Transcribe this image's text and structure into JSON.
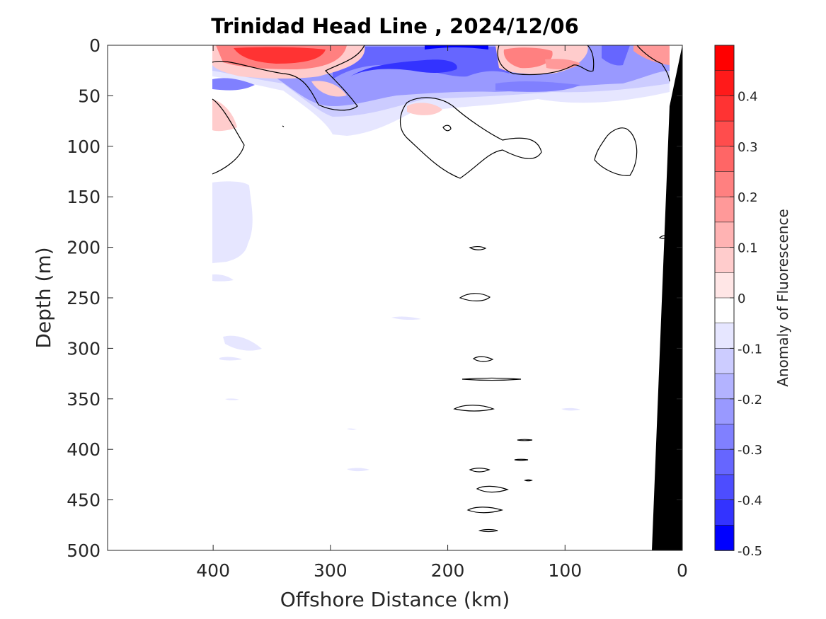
{
  "chart_data": {
    "type": "heatmap",
    "title": "Trinidad Head Line , 2024/12/06",
    "xlabel": "Offshore Distance (km)",
    "ylabel": "Depth (m)",
    "colorbar_label": "Anomaly of Fluorescence",
    "xlim": [
      490,
      0
    ],
    "ylim": [
      0,
      500
    ],
    "x_reversed": true,
    "y_reversed": true,
    "x_ticks": [
      400,
      300,
      200,
      100,
      0
    ],
    "y_ticks": [
      0,
      50,
      100,
      150,
      200,
      250,
      300,
      350,
      400,
      450,
      500
    ],
    "colorbar_range": [
      -0.5,
      0.5
    ],
    "colorbar_tick_values": [
      0.4,
      0.3,
      0.2,
      0.1,
      0,
      -0.1,
      -0.2,
      -0.3,
      -0.4,
      -0.5
    ],
    "colorbar_tick_labels": [
      "0.4",
      "0.3",
      "0.2",
      "0.1",
      "0",
      "-0.1",
      "-0.2",
      "-0.3",
      "-0.4",
      "-0.5"
    ],
    "colorbar_levels": [
      {
        "min": 0.45,
        "max": 0.5,
        "color": "#ff0000"
      },
      {
        "min": 0.4,
        "max": 0.45,
        "color": "#ff1a1a"
      },
      {
        "min": 0.35,
        "max": 0.4,
        "color": "#ff3333"
      },
      {
        "min": 0.3,
        "max": 0.35,
        "color": "#ff4d4d"
      },
      {
        "min": 0.25,
        "max": 0.3,
        "color": "#ff6666"
      },
      {
        "min": 0.2,
        "max": 0.25,
        "color": "#ff8080"
      },
      {
        "min": 0.15,
        "max": 0.2,
        "color": "#ff9999"
      },
      {
        "min": 0.1,
        "max": 0.15,
        "color": "#ffb3b3"
      },
      {
        "min": 0.05,
        "max": 0.1,
        "color": "#ffcccc"
      },
      {
        "min": 0.0,
        "max": 0.05,
        "color": "#ffe6e6"
      },
      {
        "min": -0.05,
        "max": 0.0,
        "color": "#ffffff"
      },
      {
        "min": -0.1,
        "max": -0.05,
        "color": "#e6e6ff"
      },
      {
        "min": -0.15,
        "max": -0.1,
        "color": "#ccccff"
      },
      {
        "min": -0.2,
        "max": -0.15,
        "color": "#b3b3ff"
      },
      {
        "min": -0.25,
        "max": -0.2,
        "color": "#9999ff"
      },
      {
        "min": -0.3,
        "max": -0.25,
        "color": "#8080ff"
      },
      {
        "min": -0.35,
        "max": -0.3,
        "color": "#6666ff"
      },
      {
        "min": -0.4,
        "max": -0.35,
        "color": "#4d4dff"
      },
      {
        "min": -0.45,
        "max": -0.4,
        "color": "#3333ff"
      },
      {
        "min": -0.5,
        "max": -0.45,
        "color": "#0000ff"
      }
    ],
    "data_extent_km": [
      0,
      400
    ],
    "approx_anomaly_features": [
      {
        "offshore_km": [
          300,
          375
        ],
        "depth_m": [
          0,
          25
        ],
        "value": 0.4
      },
      {
        "offshore_km": [
          390,
          400
        ],
        "depth_m": [
          50,
          90
        ],
        "value": 0.15
      },
      {
        "offshore_km": [
          200,
          225
        ],
        "depth_m": [
          55,
          70
        ],
        "value": 0.1
      },
      {
        "offshore_km": [
          120,
          155
        ],
        "depth_m": [
          5,
          25
        ],
        "value": 0.3
      },
      {
        "offshore_km": [
          15,
          40
        ],
        "depth_m": [
          0,
          15
        ],
        "value": 0.3
      },
      {
        "offshore_km": [
          190,
          290
        ],
        "depth_m": [
          20,
          45
        ],
        "value": -0.4
      },
      {
        "offshore_km": [
          160,
          200
        ],
        "depth_m": [
          0,
          20
        ],
        "value": -0.35
      },
      {
        "offshore_km": [
          60,
          100
        ],
        "depth_m": [
          0,
          20
        ],
        "value": -0.35
      },
      {
        "offshore_km": [
          340,
          400
        ],
        "depth_m": [
          30,
          55
        ],
        "value": -0.25
      },
      {
        "offshore_km": [
          0,
          140
        ],
        "depth_m": [
          40,
          70
        ],
        "value": -0.15
      },
      {
        "offshore_km": [
          365,
          400
        ],
        "depth_m": [
          135,
          220
        ],
        "value": -0.1
      }
    ],
    "bathymetry": {
      "color": "#000000",
      "offshore_km": [
        [
          0,
          0
        ],
        [
          0,
          500
        ],
        [
          26,
          500
        ]
      ],
      "note_depth_m": [
        0,
        500
      ]
    }
  }
}
